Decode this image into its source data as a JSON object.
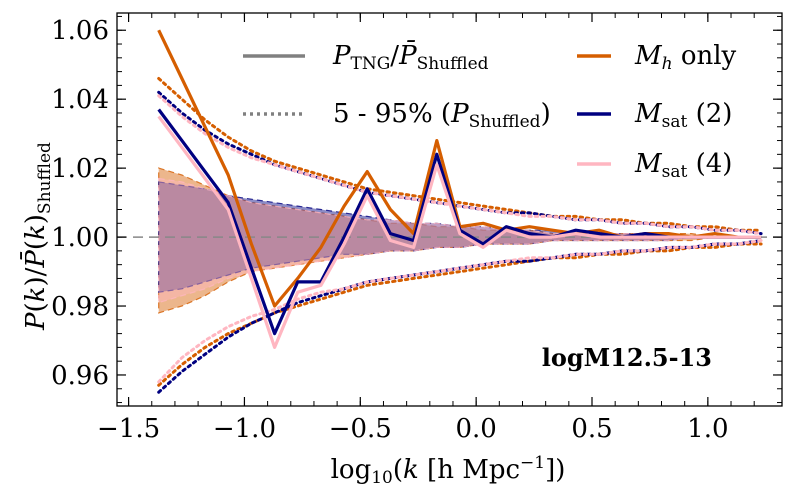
{
  "chart_data": {
    "type": "line",
    "title": "",
    "annotation": "logM12.5-13",
    "xlabel": "log10(k [h Mpc^-1])",
    "ylabel": "P(k)/P̄(k)_Shuffled",
    "xlim": [
      -1.55,
      1.32
    ],
    "ylim": [
      0.951,
      1.065
    ],
    "xticks": [
      -1.5,
      -1.0,
      -0.5,
      0.0,
      0.5,
      1.0
    ],
    "xtick_labels": [
      "−1.5",
      "−1.0",
      "−0.5",
      "0.0",
      "0.5",
      "1.0"
    ],
    "yticks": [
      0.96,
      0.98,
      1.0,
      1.02,
      1.04,
      1.06
    ],
    "ytick_labels": [
      "0.96",
      "0.98",
      "1.00",
      "1.02",
      "1.04",
      "1.06"
    ],
    "reference_line": 1.0,
    "legend": {
      "placement": "top",
      "entries": [
        {
          "label": "P_TNG / P̄_Shuffled",
          "style": "solid",
          "color": "#808080"
        },
        {
          "label": "5 - 95% (P_Shuffled)",
          "style": "dotted",
          "color": "#808080"
        },
        {
          "label": "M_h only",
          "style": "solid",
          "color": "#d55e00"
        },
        {
          "label": "M_sat (2)",
          "style": "solid",
          "color": "#000080"
        },
        {
          "label": "M_sat (4)",
          "style": "solid",
          "color": "#ffb6c1"
        }
      ]
    },
    "x": [
      -1.37,
      -1.27,
      -1.17,
      -1.07,
      -0.97,
      -0.87,
      -0.77,
      -0.67,
      -0.57,
      -0.47,
      -0.37,
      -0.27,
      -0.17,
      -0.07,
      0.03,
      0.13,
      0.23,
      0.33,
      0.43,
      0.53,
      0.63,
      0.73,
      0.83,
      0.93,
      1.03,
      1.13,
      1.23
    ],
    "series": [
      {
        "name": "M_h only",
        "color": "#d55e00",
        "values": [
          1.06,
          1.046,
          1.032,
          1.018,
          0.998,
          0.98,
          0.988,
          0.997,
          1.009,
          1.019,
          1.008,
          1.001,
          1.028,
          1.003,
          1.004,
          1.002,
          1.003,
          1.002,
          1.001,
          1.002,
          1.0,
          1.001,
          1.001,
          1.0,
          1.001,
          1.0,
          1.0
        ],
        "band_lo": [
          0.978,
          0.98,
          0.983,
          0.987,
          0.99,
          0.991,
          0.992,
          0.993,
          0.994,
          0.995,
          0.996,
          0.996,
          0.997,
          0.997,
          0.998,
          0.998,
          0.998,
          0.999,
          0.999,
          0.999,
          0.999,
          0.999,
          0.999,
          0.999,
          1.0,
          1.0,
          1.0
        ],
        "band_hi": [
          1.02,
          1.018,
          1.015,
          1.012,
          1.01,
          1.009,
          1.008,
          1.007,
          1.006,
          1.005,
          1.004,
          1.004,
          1.003,
          1.003,
          1.002,
          1.002,
          1.002,
          1.001,
          1.001,
          1.001,
          1.001,
          1.001,
          1.001,
          1.001,
          1.0,
          1.0,
          1.0
        ],
        "p5": [
          0.957,
          0.963,
          0.968,
          0.972,
          0.975,
          0.978,
          0.98,
          0.982,
          0.984,
          0.986,
          0.987,
          0.988,
          0.989,
          0.99,
          0.991,
          0.992,
          0.993,
          0.994,
          0.994,
          0.995,
          0.995,
          0.996,
          0.996,
          0.997,
          0.997,
          0.998,
          0.998
        ],
        "p95": [
          1.046,
          1.04,
          1.034,
          1.029,
          1.025,
          1.022,
          1.02,
          1.018,
          1.016,
          1.014,
          1.013,
          1.012,
          1.011,
          1.01,
          1.009,
          1.008,
          1.007,
          1.006,
          1.006,
          1.005,
          1.005,
          1.004,
          1.004,
          1.003,
          1.003,
          1.002,
          1.002
        ]
      },
      {
        "name": "M_sat (2)",
        "color": "#000080",
        "values": [
          1.037,
          1.028,
          1.019,
          1.01,
          0.991,
          0.972,
          0.987,
          0.987,
          1.0,
          1.014,
          1.001,
          0.999,
          1.024,
          1.002,
          0.998,
          1.003,
          1.001,
          1.0,
          1.002,
          1.001,
          1.0,
          1.001,
          1.0,
          1.0,
          1.0,
          1.0,
          1.0
        ],
        "band_lo": [
          0.984,
          0.985,
          0.987,
          0.989,
          0.991,
          0.992,
          0.993,
          0.994,
          0.995,
          0.995,
          0.996,
          0.996,
          0.997,
          0.997,
          0.998,
          0.998,
          0.998,
          0.999,
          0.999,
          0.999,
          0.999,
          0.999,
          0.999,
          1.0,
          1.0,
          1.0,
          1.0
        ],
        "band_hi": [
          1.016,
          1.015,
          1.014,
          1.012,
          1.011,
          1.01,
          1.009,
          1.008,
          1.007,
          1.006,
          1.005,
          1.004,
          1.004,
          1.003,
          1.003,
          1.002,
          1.002,
          1.002,
          1.001,
          1.001,
          1.001,
          1.001,
          1.001,
          1.0,
          1.0,
          1.0,
          1.0
        ],
        "p5": [
          0.955,
          0.961,
          0.966,
          0.971,
          0.975,
          0.978,
          0.981,
          0.983,
          0.985,
          0.987,
          0.988,
          0.989,
          0.99,
          0.991,
          0.992,
          0.993,
          0.993,
          0.994,
          0.995,
          0.995,
          0.996,
          0.996,
          0.997,
          0.997,
          0.998,
          0.998,
          0.999
        ],
        "p95": [
          1.042,
          1.036,
          1.031,
          1.027,
          1.024,
          1.021,
          1.019,
          1.017,
          1.015,
          1.013,
          1.012,
          1.011,
          1.01,
          1.009,
          1.008,
          1.007,
          1.007,
          1.006,
          1.005,
          1.005,
          1.004,
          1.004,
          1.003,
          1.003,
          1.002,
          1.002,
          1.001
        ]
      },
      {
        "name": "M_sat (4)",
        "color": "#ffb6c1",
        "values": [
          1.035,
          1.026,
          1.017,
          1.008,
          0.988,
          0.968,
          0.984,
          0.986,
          0.998,
          1.012,
          0.999,
          0.997,
          1.021,
          1.001,
          0.997,
          1.002,
          1.0,
          1.0,
          1.001,
          1.0,
          1.0,
          1.0,
          1.0,
          1.0,
          1.0,
          1.0,
          1.0
        ],
        "band_lo": [
          0.981,
          0.983,
          0.985,
          0.988,
          0.99,
          0.991,
          0.992,
          0.993,
          0.994,
          0.995,
          0.996,
          0.996,
          0.997,
          0.997,
          0.998,
          0.998,
          0.998,
          0.999,
          0.999,
          0.999,
          0.999,
          0.999,
          0.999,
          1.0,
          1.0,
          1.0,
          1.0
        ],
        "band_hi": [
          1.017,
          1.016,
          1.014,
          1.012,
          1.01,
          1.009,
          1.008,
          1.007,
          1.006,
          1.005,
          1.005,
          1.004,
          1.004,
          1.003,
          1.003,
          1.002,
          1.002,
          1.001,
          1.001,
          1.001,
          1.001,
          1.001,
          1.0,
          1.0,
          1.0,
          1.0,
          1.0
        ],
        "p5": [
          0.958,
          0.965,
          0.97,
          0.974,
          0.977,
          0.979,
          0.982,
          0.984,
          0.985,
          0.987,
          0.988,
          0.989,
          0.99,
          0.991,
          0.992,
          0.993,
          0.994,
          0.994,
          0.995,
          0.995,
          0.996,
          0.996,
          0.997,
          0.997,
          0.998,
          0.998,
          0.999
        ],
        "p95": [
          1.041,
          1.035,
          1.03,
          1.026,
          1.023,
          1.021,
          1.019,
          1.017,
          1.015,
          1.013,
          1.012,
          1.011,
          1.01,
          1.009,
          1.008,
          1.007,
          1.006,
          1.006,
          1.005,
          1.005,
          1.004,
          1.004,
          1.003,
          1.003,
          1.002,
          1.002,
          1.001
        ]
      }
    ]
  }
}
